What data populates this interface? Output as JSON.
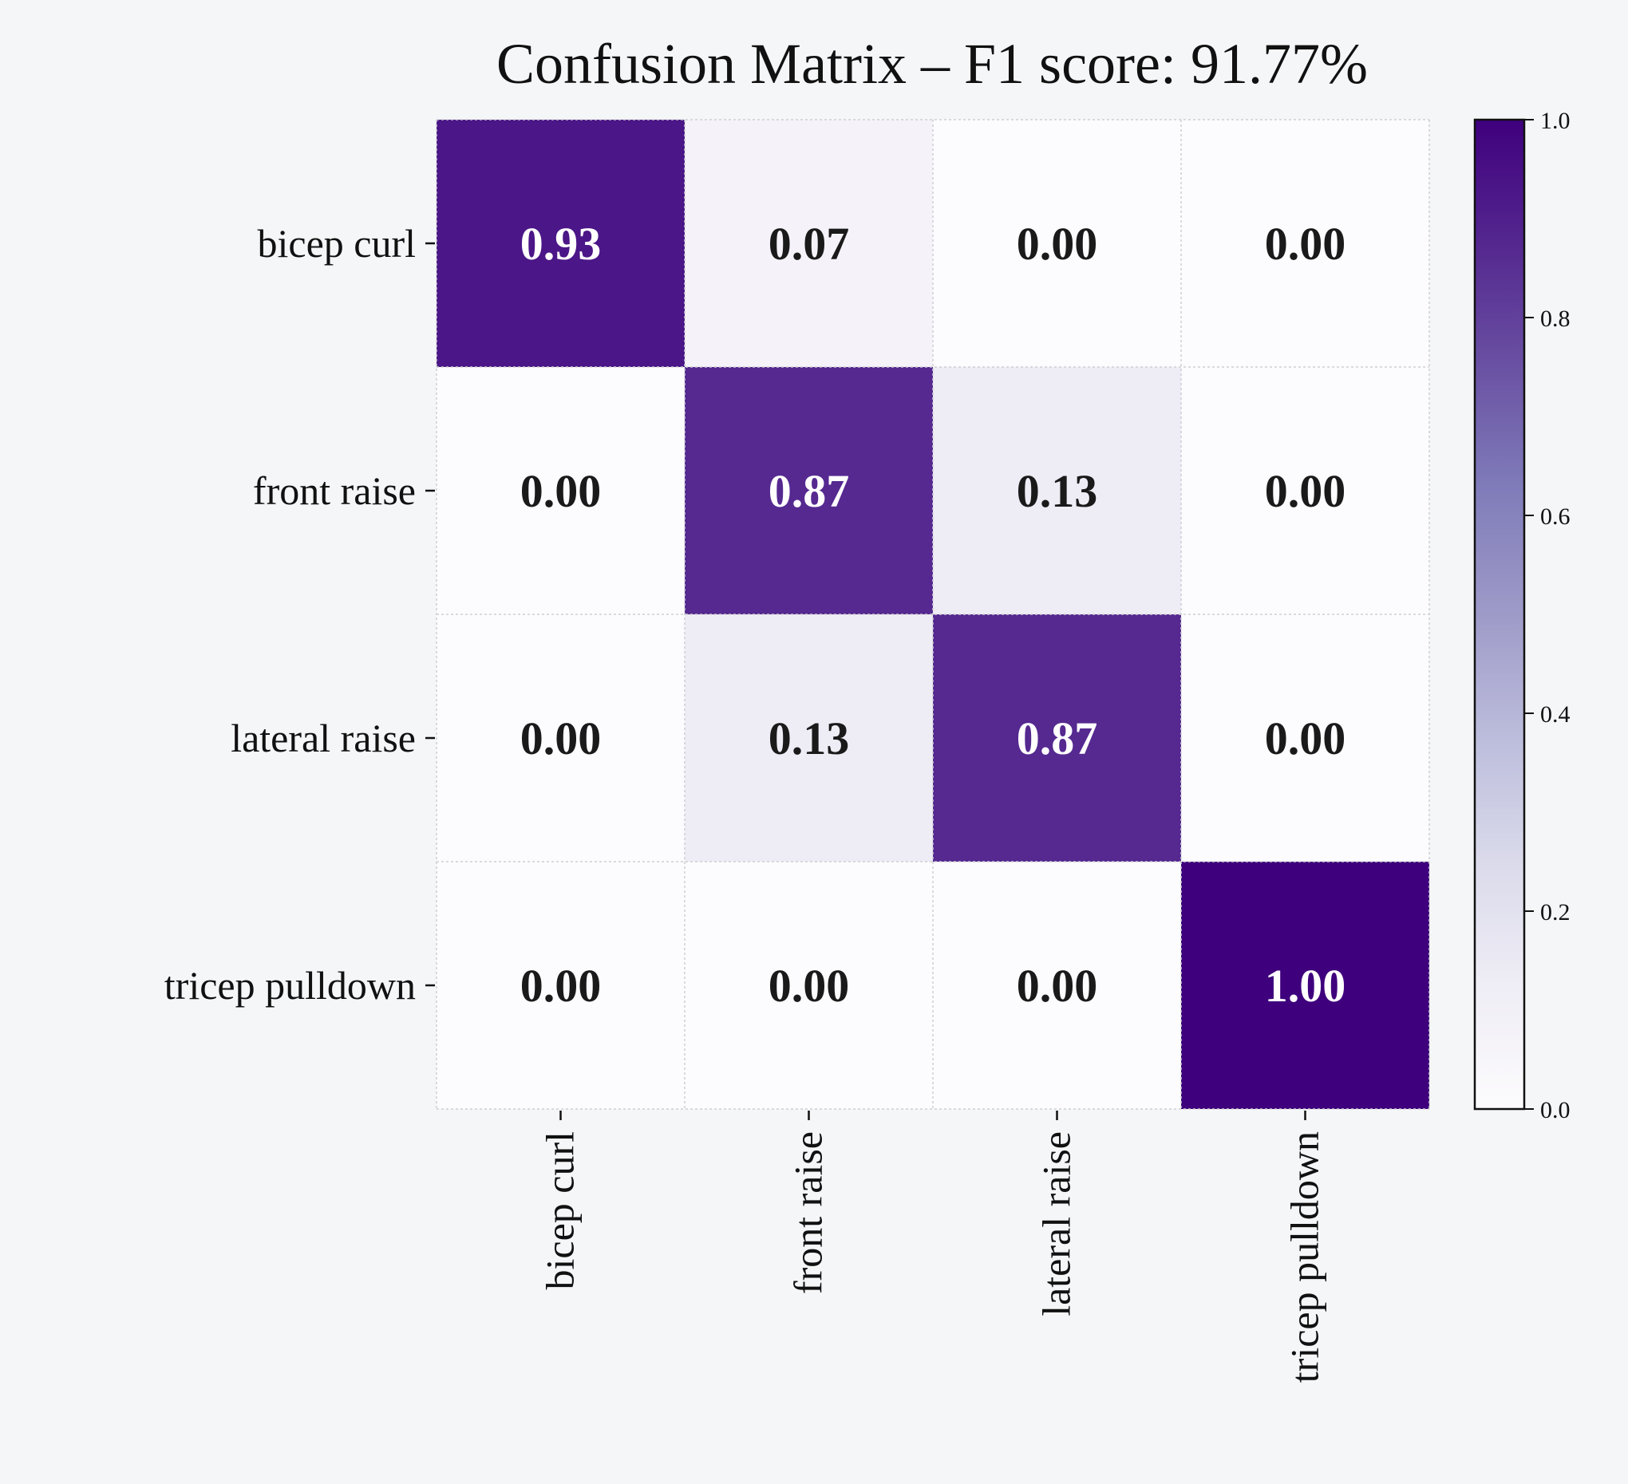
{
  "chart_data": {
    "type": "heatmap",
    "title": "Confusion Matrix – F1 score: 91.77%",
    "xlabel": "",
    "ylabel": "",
    "row_labels": [
      "bicep curl",
      "front raise",
      "lateral raise",
      "tricep pulldown"
    ],
    "col_labels": [
      "bicep curl",
      "front raise",
      "lateral raise",
      "tricep pulldown"
    ],
    "values": [
      [
        0.93,
        0.07,
        0.0,
        0.0
      ],
      [
        0.0,
        0.87,
        0.13,
        0.0
      ],
      [
        0.0,
        0.13,
        0.87,
        0.0
      ],
      [
        0.0,
        0.0,
        0.0,
        1.0
      ]
    ],
    "value_labels": [
      [
        "0.93",
        "0.07",
        "0.00",
        "0.00"
      ],
      [
        "0.00",
        "0.87",
        "0.13",
        "0.00"
      ],
      [
        "0.00",
        "0.13",
        "0.87",
        "0.00"
      ],
      [
        "0.00",
        "0.00",
        "0.00",
        "1.00"
      ]
    ],
    "colormap": "Purples",
    "colorbar": {
      "range": [
        0,
        1
      ],
      "tick_labels": [
        "0.0",
        "0.2",
        "0.4",
        "0.6",
        "0.8",
        "1.0"
      ],
      "tick_values": [
        0.0,
        0.2,
        0.4,
        0.6,
        0.8,
        1.0
      ]
    },
    "grid": true,
    "colors": {
      "low": "#fcfbfd",
      "high": "#3f007d",
      "text_dark": "#1a1a1a",
      "text_light": "#ffffff",
      "background": "#f5f6f8"
    }
  }
}
